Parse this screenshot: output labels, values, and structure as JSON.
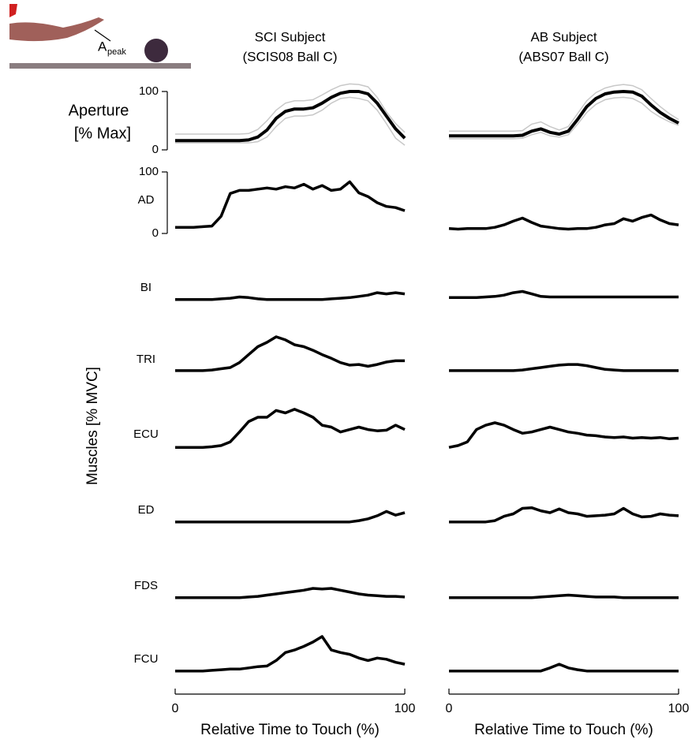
{
  "icon": {
    "label": "A",
    "subscript": "peak"
  },
  "chart_data": [
    {
      "type": "line",
      "title": "SCI Subject",
      "subtitle": "(SCIS08 Ball C)",
      "xlabel": "Relative Time to Touch (%)",
      "xlim": [
        0,
        100
      ],
      "xticks": [
        0,
        100
      ],
      "x": [
        0,
        4,
        8,
        12,
        16,
        20,
        24,
        28,
        32,
        36,
        40,
        44,
        48,
        52,
        56,
        60,
        64,
        68,
        72,
        76,
        80,
        84,
        88,
        92,
        96,
        100
      ],
      "ylabel": [
        "Aperture",
        "[% Max]"
      ],
      "ylim": [
        0,
        100
      ],
      "yticks": [
        0,
        100
      ],
      "muscle_ylabel": "Muscles [% MVC]",
      "muscle_ylim": [
        0,
        100
      ],
      "muscle_yticks": [
        0,
        100
      ],
      "line_color": "#000000",
      "band_color": "#c8c8c8",
      "aperture": {
        "values": [
          16,
          16,
          16,
          16,
          16,
          16,
          16,
          16,
          17,
          22,
          34,
          54,
          66,
          70,
          70,
          72,
          80,
          90,
          97,
          100,
          100,
          96,
          80,
          58,
          36,
          20
        ],
        "upper": [
          27,
          27,
          27,
          27,
          27,
          27,
          27,
          27,
          28,
          35,
          50,
          68,
          80,
          84,
          84,
          86,
          94,
          103,
          110,
          113,
          112,
          108,
          90,
          65,
          45,
          30
        ],
        "lower": [
          12,
          12,
          12,
          12,
          12,
          12,
          12,
          12,
          12,
          14,
          22,
          40,
          54,
          58,
          58,
          60,
          68,
          80,
          88,
          90,
          88,
          84,
          68,
          45,
          20,
          8
        ]
      },
      "muscles": [
        {
          "name": "AD",
          "values": [
            10,
            10,
            10,
            11,
            12,
            28,
            65,
            70,
            70,
            72,
            74,
            72,
            76,
            74,
            80,
            72,
            78,
            70,
            72,
            84,
            66,
            60,
            50,
            44,
            42,
            37
          ]
        },
        {
          "name": "BI",
          "values": [
            3,
            3,
            3,
            3,
            3,
            4,
            5,
            7,
            6,
            4,
            3,
            3,
            3,
            3,
            3,
            3,
            3,
            4,
            5,
            6,
            8,
            10,
            14,
            12,
            14,
            12
          ]
        },
        {
          "name": "TRI",
          "values": [
            4,
            4,
            4,
            4,
            5,
            7,
            9,
            17,
            30,
            43,
            50,
            59,
            54,
            46,
            43,
            37,
            30,
            24,
            17,
            13,
            14,
            11,
            14,
            18,
            20,
            20
          ]
        },
        {
          "name": "ECU",
          "values": [
            1,
            1,
            1,
            1,
            2,
            4,
            10,
            26,
            43,
            50,
            50,
            61,
            57,
            63,
            57,
            50,
            37,
            34,
            26,
            30,
            34,
            30,
            28,
            29,
            37,
            30
          ]
        },
        {
          "name": "ED",
          "values": [
            3,
            3,
            3,
            3,
            3,
            3,
            3,
            3,
            3,
            3,
            3,
            3,
            3,
            3,
            3,
            3,
            3,
            3,
            3,
            3,
            5,
            8,
            13,
            20,
            14,
            18
          ]
        },
        {
          "name": "FDS",
          "values": [
            3,
            3,
            3,
            3,
            3,
            3,
            3,
            3,
            4,
            5,
            7,
            9,
            11,
            13,
            15,
            18,
            17,
            18,
            15,
            12,
            9,
            7,
            6,
            5,
            5,
            4
          ]
        },
        {
          "name": "FCU",
          "values": [
            3,
            3,
            3,
            3,
            4,
            5,
            6,
            6,
            8,
            10,
            11,
            20,
            33,
            37,
            43,
            50,
            59,
            37,
            33,
            30,
            24,
            20,
            24,
            22,
            17,
            14
          ]
        }
      ]
    },
    {
      "type": "line",
      "title": "AB Subject",
      "subtitle": "(ABS07 Ball C)",
      "xlabel": "Relative Time to Touch (%)",
      "xlim": [
        0,
        100
      ],
      "xticks": [
        0,
        100
      ],
      "x": [
        0,
        4,
        8,
        12,
        16,
        20,
        24,
        28,
        32,
        36,
        40,
        44,
        48,
        52,
        56,
        60,
        64,
        68,
        72,
        76,
        80,
        84,
        88,
        92,
        96,
        100
      ],
      "aperture": {
        "values": [
          24,
          24,
          24,
          24,
          24,
          24,
          24,
          24,
          25,
          32,
          36,
          30,
          27,
          32,
          52,
          74,
          88,
          96,
          99,
          100,
          99,
          92,
          77,
          64,
          54,
          46
        ],
        "upper": [
          32,
          32,
          32,
          32,
          32,
          32,
          32,
          32,
          33,
          44,
          48,
          40,
          34,
          40,
          62,
          84,
          98,
          106,
          110,
          112,
          110,
          103,
          88,
          74,
          62,
          52
        ],
        "lower": [
          19,
          19,
          19,
          19,
          19,
          19,
          19,
          19,
          20,
          26,
          30,
          24,
          22,
          26,
          44,
          64,
          78,
          86,
          89,
          90,
          88,
          80,
          66,
          56,
          48,
          42
        ]
      },
      "muscles": [
        {
          "values": [
            8,
            7,
            8,
            8,
            8,
            10,
            14,
            20,
            25,
            18,
            12,
            10,
            8,
            7,
            8,
            8,
            10,
            14,
            16,
            24,
            20,
            26,
            30,
            22,
            16,
            14
          ]
        },
        {
          "values": [
            6,
            6,
            6,
            6,
            7,
            8,
            10,
            14,
            16,
            12,
            8,
            7,
            7,
            7,
            7,
            7,
            7,
            7,
            7,
            7,
            7,
            7,
            7,
            7,
            7,
            7
          ]
        },
        {
          "values": [
            4,
            4,
            4,
            4,
            4,
            4,
            4,
            4,
            5,
            7,
            9,
            11,
            13,
            14,
            14,
            12,
            9,
            6,
            5,
            4,
            4,
            4,
            4,
            4,
            4,
            4
          ]
        },
        {
          "values": [
            1,
            4,
            10,
            30,
            37,
            41,
            37,
            30,
            24,
            26,
            30,
            34,
            30,
            26,
            24,
            21,
            20,
            18,
            17,
            18,
            16,
            17,
            16,
            17,
            15,
            16
          ]
        },
        {
          "values": [
            3,
            3,
            3,
            3,
            3,
            5,
            12,
            16,
            25,
            26,
            21,
            18,
            24,
            18,
            16,
            12,
            13,
            14,
            16,
            25,
            16,
            11,
            12,
            16,
            14,
            13
          ]
        },
        {
          "values": [
            3,
            3,
            3,
            3,
            3,
            3,
            3,
            3,
            3,
            3,
            4,
            5,
            6,
            7,
            6,
            5,
            4,
            4,
            4,
            3,
            3,
            3,
            3,
            3,
            3,
            3
          ]
        },
        {
          "values": [
            3,
            3,
            3,
            3,
            3,
            3,
            3,
            3,
            3,
            3,
            3,
            8,
            14,
            8,
            5,
            3,
            3,
            3,
            3,
            3,
            3,
            3,
            3,
            3,
            3,
            3
          ]
        }
      ]
    }
  ]
}
